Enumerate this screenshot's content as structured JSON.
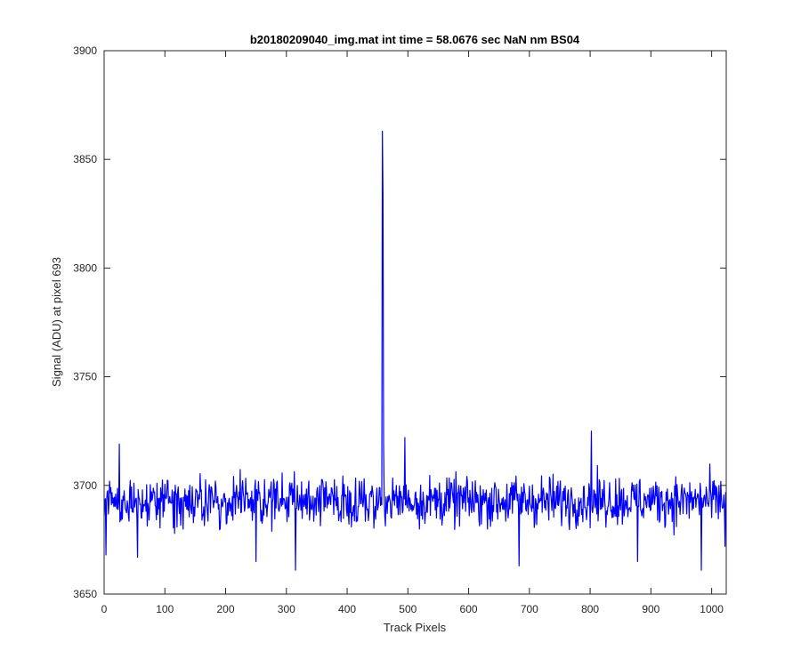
{
  "chart_data": {
    "type": "line",
    "title": "b20180209040_img.mat int time = 58.0676 sec  NaN nm BS04",
    "xlabel": "Track Pixels",
    "ylabel": "Signal (ADU) at pixel 693",
    "xlim": [
      0,
      1024
    ],
    "ylim": [
      3650,
      3900
    ],
    "xticks": [
      0,
      100,
      200,
      300,
      400,
      500,
      600,
      700,
      800,
      900,
      1000
    ],
    "yticks": [
      3650,
      3700,
      3750,
      3800,
      3850,
      3900
    ],
    "grid": false,
    "series_color": "#0000ff",
    "baseline": 3693,
    "noise_amplitude": 10,
    "n_points": 1024,
    "features": [
      {
        "x": 3,
        "y": 3668
      },
      {
        "x": 25,
        "y": 3719
      },
      {
        "x": 55,
        "y": 3667
      },
      {
        "x": 250,
        "y": 3665
      },
      {
        "x": 315,
        "y": 3661
      },
      {
        "x": 458,
        "y": 3863
      },
      {
        "x": 459,
        "y": 3834
      },
      {
        "x": 460,
        "y": 3719
      },
      {
        "x": 495,
        "y": 3722
      },
      {
        "x": 683,
        "y": 3663
      },
      {
        "x": 802,
        "y": 3725
      },
      {
        "x": 878,
        "y": 3665
      },
      {
        "x": 983,
        "y": 3661
      },
      {
        "x": 1022,
        "y": 3672
      }
    ]
  }
}
